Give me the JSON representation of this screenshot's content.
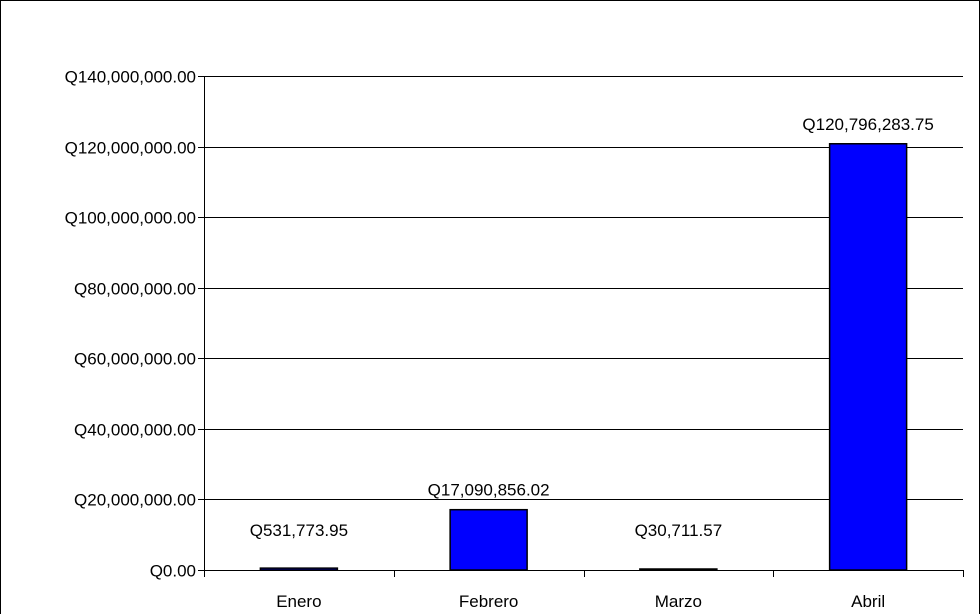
{
  "chart_data": {
    "type": "bar",
    "categories": [
      "Enero",
      "Febrero",
      "Marzo",
      "Abril"
    ],
    "values": [
      531773.95,
      17090856.02,
      30711.57,
      120796283.75
    ],
    "data_labels": [
      "Q531,773.95",
      "Q17,090,856.02",
      "Q30,711.57",
      "Q120,796,283.75"
    ],
    "title": "",
    "xlabel": "",
    "ylabel": "",
    "ylim": [
      0,
      140000000
    ],
    "y_ticks": [
      0,
      20000000,
      40000000,
      60000000,
      80000000,
      100000000,
      120000000,
      140000000
    ],
    "y_tick_labels": [
      "Q0.00",
      "Q20,000,000.00",
      "Q40,000,000.00",
      "Q60,000,000.00",
      "Q80,000,000.00",
      "Q100,000,000.00",
      "Q120,000,000.00",
      "Q140,000,000.00"
    ],
    "grid": true,
    "legend": "none",
    "bar_color": "#0000FF",
    "bar_edge_color": "#000000",
    "grid_color": "#000000"
  }
}
